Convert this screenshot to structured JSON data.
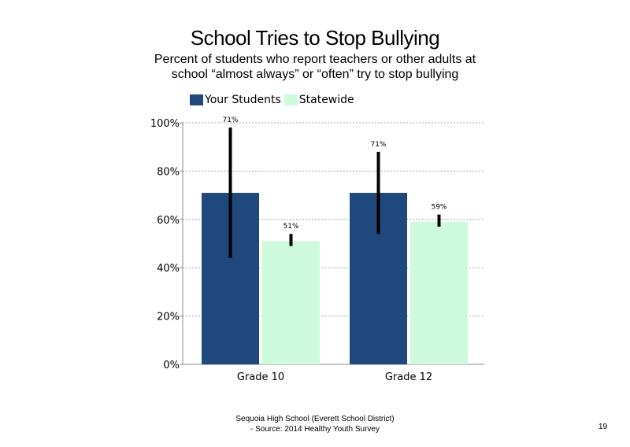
{
  "title": "School Tries to Stop Bullying",
  "subtitle": "Percent of students who report teachers or other adults at school “almost always” or “often” try to stop bullying",
  "footer": {
    "line1": "Sequoia High School (Everett School District)",
    "line2": "- Source: 2014 Healthy Youth Survey"
  },
  "page_number": "19",
  "colors": {
    "your_students": "#1f497d",
    "statewide": "#ccfadb",
    "error_bar": "#000000",
    "gridline": "#a6a6a6",
    "axis": "#888888"
  },
  "chart_data": {
    "type": "bar",
    "title": "School Tries to Stop Bullying",
    "categories": [
      "Grade 10",
      "Grade 12"
    ],
    "ylim": [
      0,
      100
    ],
    "yticks": [
      0,
      20,
      40,
      60,
      80,
      100
    ],
    "ytick_labels": [
      "0%",
      "20%",
      "40%",
      "60%",
      "80%",
      "100%"
    ],
    "grid": true,
    "legend": "top-left",
    "series": [
      {
        "name": "Your Students",
        "values": [
          71,
          71
        ],
        "labels": [
          "71%",
          "71%"
        ],
        "error_low": [
          44,
          54
        ],
        "error_high": [
          98,
          88
        ]
      },
      {
        "name": "Statewide",
        "values": [
          51,
          59
        ],
        "labels": [
          "51%",
          "59%"
        ],
        "error_low": [
          49,
          57
        ],
        "error_high": [
          54,
          62
        ]
      }
    ]
  }
}
